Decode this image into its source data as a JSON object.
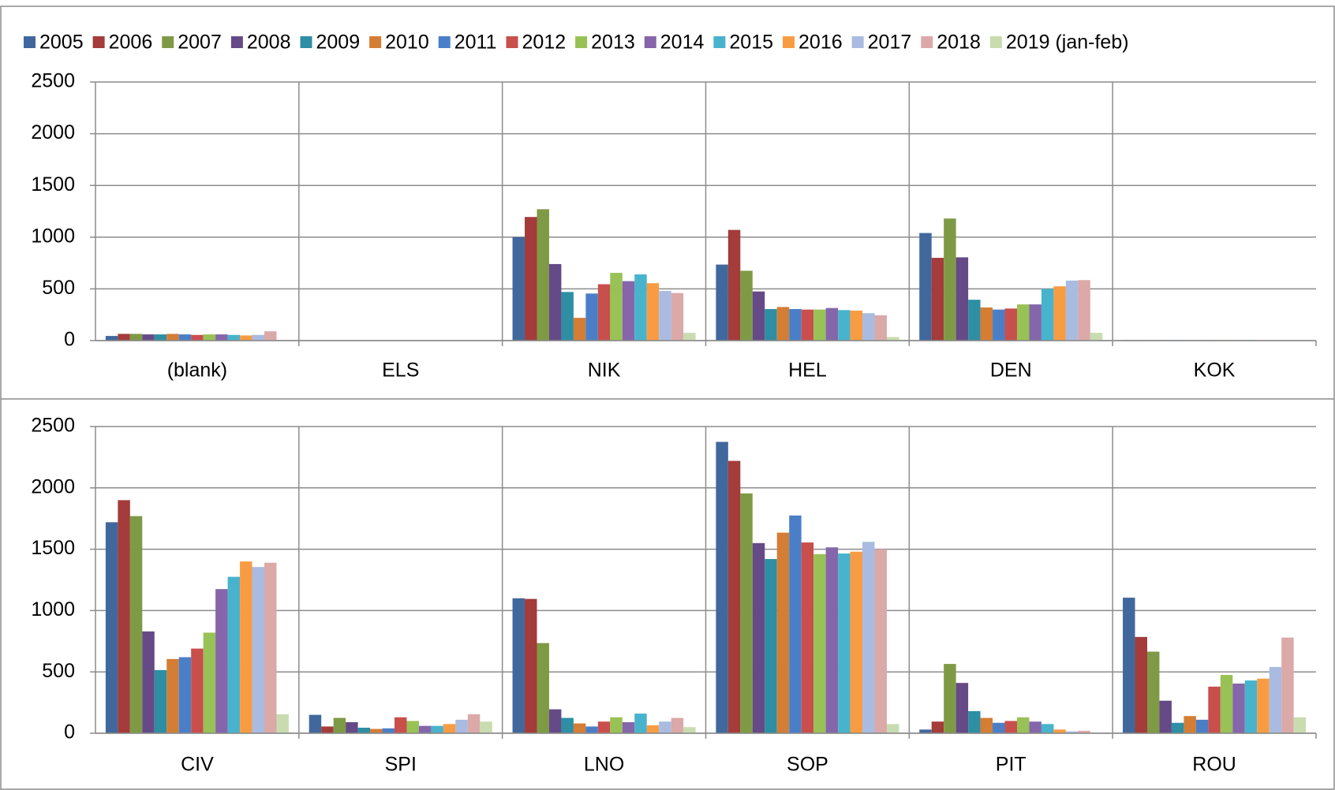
{
  "chart_data": [
    {
      "type": "bar",
      "legend": "top",
      "grid": true,
      "categories": [
        "(blank)",
        "ELS",
        "NIK",
        "HEL",
        "DEN",
        "KOK"
      ],
      "ylim": [
        0,
        2500
      ],
      "yticks": [
        0,
        500,
        1000,
        1500,
        2000,
        2500
      ],
      "series": [
        {
          "name": "2005",
          "color": "#41689d",
          "values": [
            45,
            0,
            1000,
            735,
            1040,
            5
          ]
        },
        {
          "name": "2006",
          "color": "#a33c3a",
          "values": [
            65,
            0,
            1195,
            1070,
            800,
            5
          ]
        },
        {
          "name": "2007",
          "color": "#7f9a45",
          "values": [
            65,
            0,
            1270,
            675,
            1180,
            5
          ]
        },
        {
          "name": "2008",
          "color": "#654a87",
          "values": [
            60,
            0,
            740,
            475,
            805,
            5
          ]
        },
        {
          "name": "2009",
          "color": "#2e8ea3",
          "values": [
            60,
            0,
            470,
            305,
            395,
            5
          ]
        },
        {
          "name": "2010",
          "color": "#d47d34",
          "values": [
            65,
            0,
            220,
            325,
            320,
            5
          ]
        },
        {
          "name": "2011",
          "color": "#4a7fc8",
          "values": [
            60,
            0,
            455,
            305,
            300,
            5
          ]
        },
        {
          "name": "2012",
          "color": "#c84f4c",
          "values": [
            55,
            0,
            545,
            300,
            310,
            5
          ]
        },
        {
          "name": "2013",
          "color": "#98c255",
          "values": [
            60,
            0,
            655,
            300,
            350,
            5
          ]
        },
        {
          "name": "2014",
          "color": "#8566aa",
          "values": [
            60,
            0,
            575,
            315,
            350,
            5
          ]
        },
        {
          "name": "2015",
          "color": "#48b3cd",
          "values": [
            55,
            0,
            640,
            295,
            500,
            5
          ]
        },
        {
          "name": "2016",
          "color": "#f89c43",
          "values": [
            50,
            0,
            555,
            290,
            525,
            5
          ]
        },
        {
          "name": "2017",
          "color": "#a9bbe0",
          "values": [
            55,
            0,
            480,
            265,
            580,
            5
          ]
        },
        {
          "name": "2018",
          "color": "#dba9a8",
          "values": [
            90,
            0,
            460,
            245,
            585,
            5
          ]
        },
        {
          "name": "2019 (jan-feb)",
          "color": "#c8dcb0",
          "values": [
            0,
            0,
            75,
            35,
            75,
            3
          ]
        }
      ]
    },
    {
      "type": "bar",
      "grid": true,
      "categories": [
        "CIV",
        "SPI",
        "LNO",
        "SOP",
        "PIT",
        "ROU"
      ],
      "ylim": [
        0,
        2500
      ],
      "yticks": [
        0,
        500,
        1000,
        1500,
        2000,
        2500
      ],
      "series": [
        {
          "values": [
            1720,
            150,
            1100,
            2375,
            30,
            1105
          ]
        },
        {
          "values": [
            1900,
            55,
            1095,
            2220,
            95,
            785
          ]
        },
        {
          "values": [
            1770,
            125,
            735,
            1955,
            565,
            665
          ]
        },
        {
          "values": [
            830,
            90,
            195,
            1550,
            410,
            265
          ]
        },
        {
          "values": [
            515,
            45,
            125,
            1420,
            180,
            85
          ]
        },
        {
          "values": [
            605,
            35,
            80,
            1635,
            125,
            140
          ]
        },
        {
          "values": [
            620,
            40,
            55,
            1775,
            85,
            110
          ]
        },
        {
          "values": [
            690,
            130,
            95,
            1555,
            100,
            380
          ]
        },
        {
          "values": [
            820,
            100,
            130,
            1460,
            130,
            475
          ]
        },
        {
          "values": [
            1175,
            60,
            90,
            1515,
            95,
            405
          ]
        },
        {
          "values": [
            1275,
            60,
            160,
            1465,
            75,
            430
          ]
        },
        {
          "values": [
            1400,
            75,
            65,
            1480,
            30,
            445
          ]
        },
        {
          "values": [
            1355,
            110,
            95,
            1560,
            15,
            540
          ]
        },
        {
          "values": [
            1390,
            155,
            125,
            1500,
            20,
            780
          ]
        },
        {
          "values": [
            155,
            95,
            50,
            75,
            0,
            130
          ]
        }
      ]
    }
  ]
}
